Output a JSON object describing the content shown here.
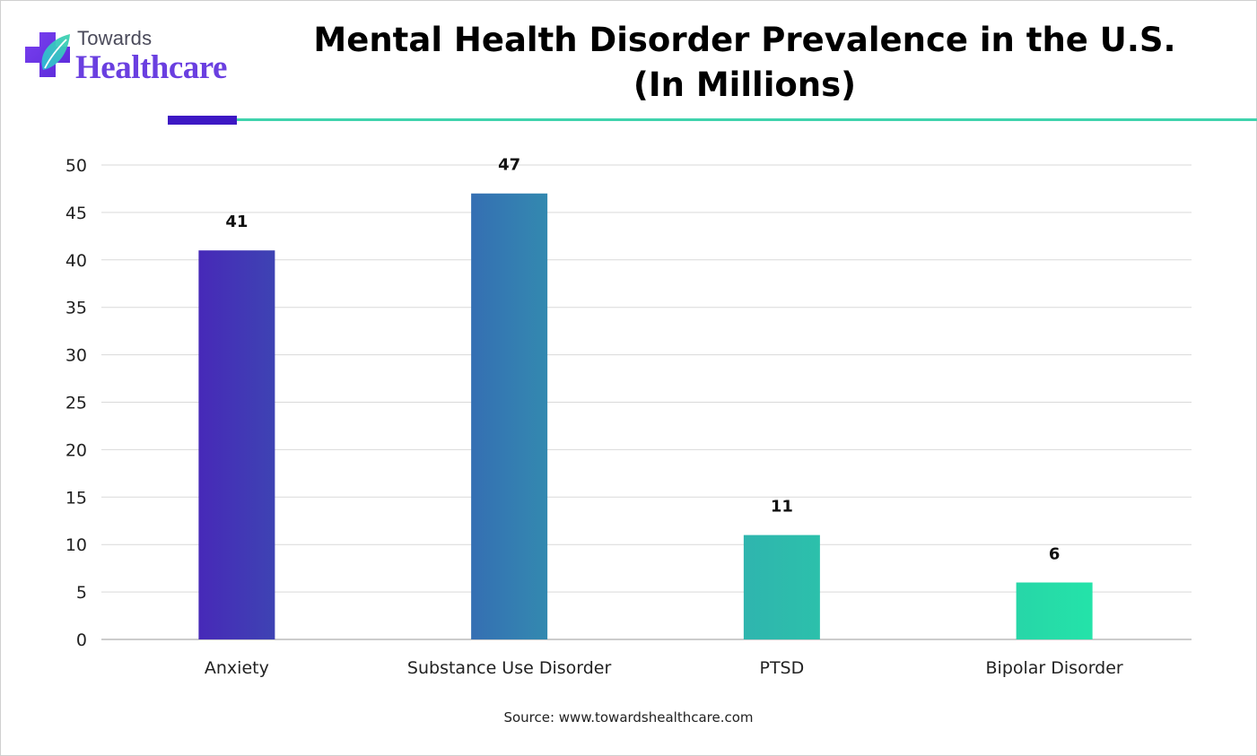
{
  "brand": {
    "line1": "Towards",
    "line2": "Healthcare",
    "colors": {
      "primary": "#6a3fe0",
      "accent": "#3fd3ad",
      "dark": "#3d18c4"
    }
  },
  "source_text": "Source: www.towardshealthcare.com",
  "chart_data": {
    "type": "bar",
    "title": "Mental Health Disorder Prevalence in the U.S.",
    "subtitle": "(In Millions)",
    "categories": [
      "Anxiety",
      "Substance Use Disorder",
      "PTSD",
      "Bipolar Disorder"
    ],
    "values": [
      41,
      47,
      11,
      6
    ],
    "data_labels": [
      "41",
      "47",
      "11",
      "6"
    ],
    "bar_colors": [
      [
        "#4729b8",
        "#3e43b3"
      ],
      [
        "#356fb3",
        "#3389b0"
      ],
      [
        "#2fb5ae",
        "#2cc0ab"
      ],
      [
        "#27d6a8",
        "#24e3a9"
      ]
    ],
    "xlabel": "",
    "ylabel": "",
    "ylim": [
      0,
      50
    ],
    "yticks": [
      0,
      5,
      10,
      15,
      20,
      25,
      30,
      35,
      40,
      45,
      50
    ],
    "grid": true,
    "legend": "none"
  }
}
